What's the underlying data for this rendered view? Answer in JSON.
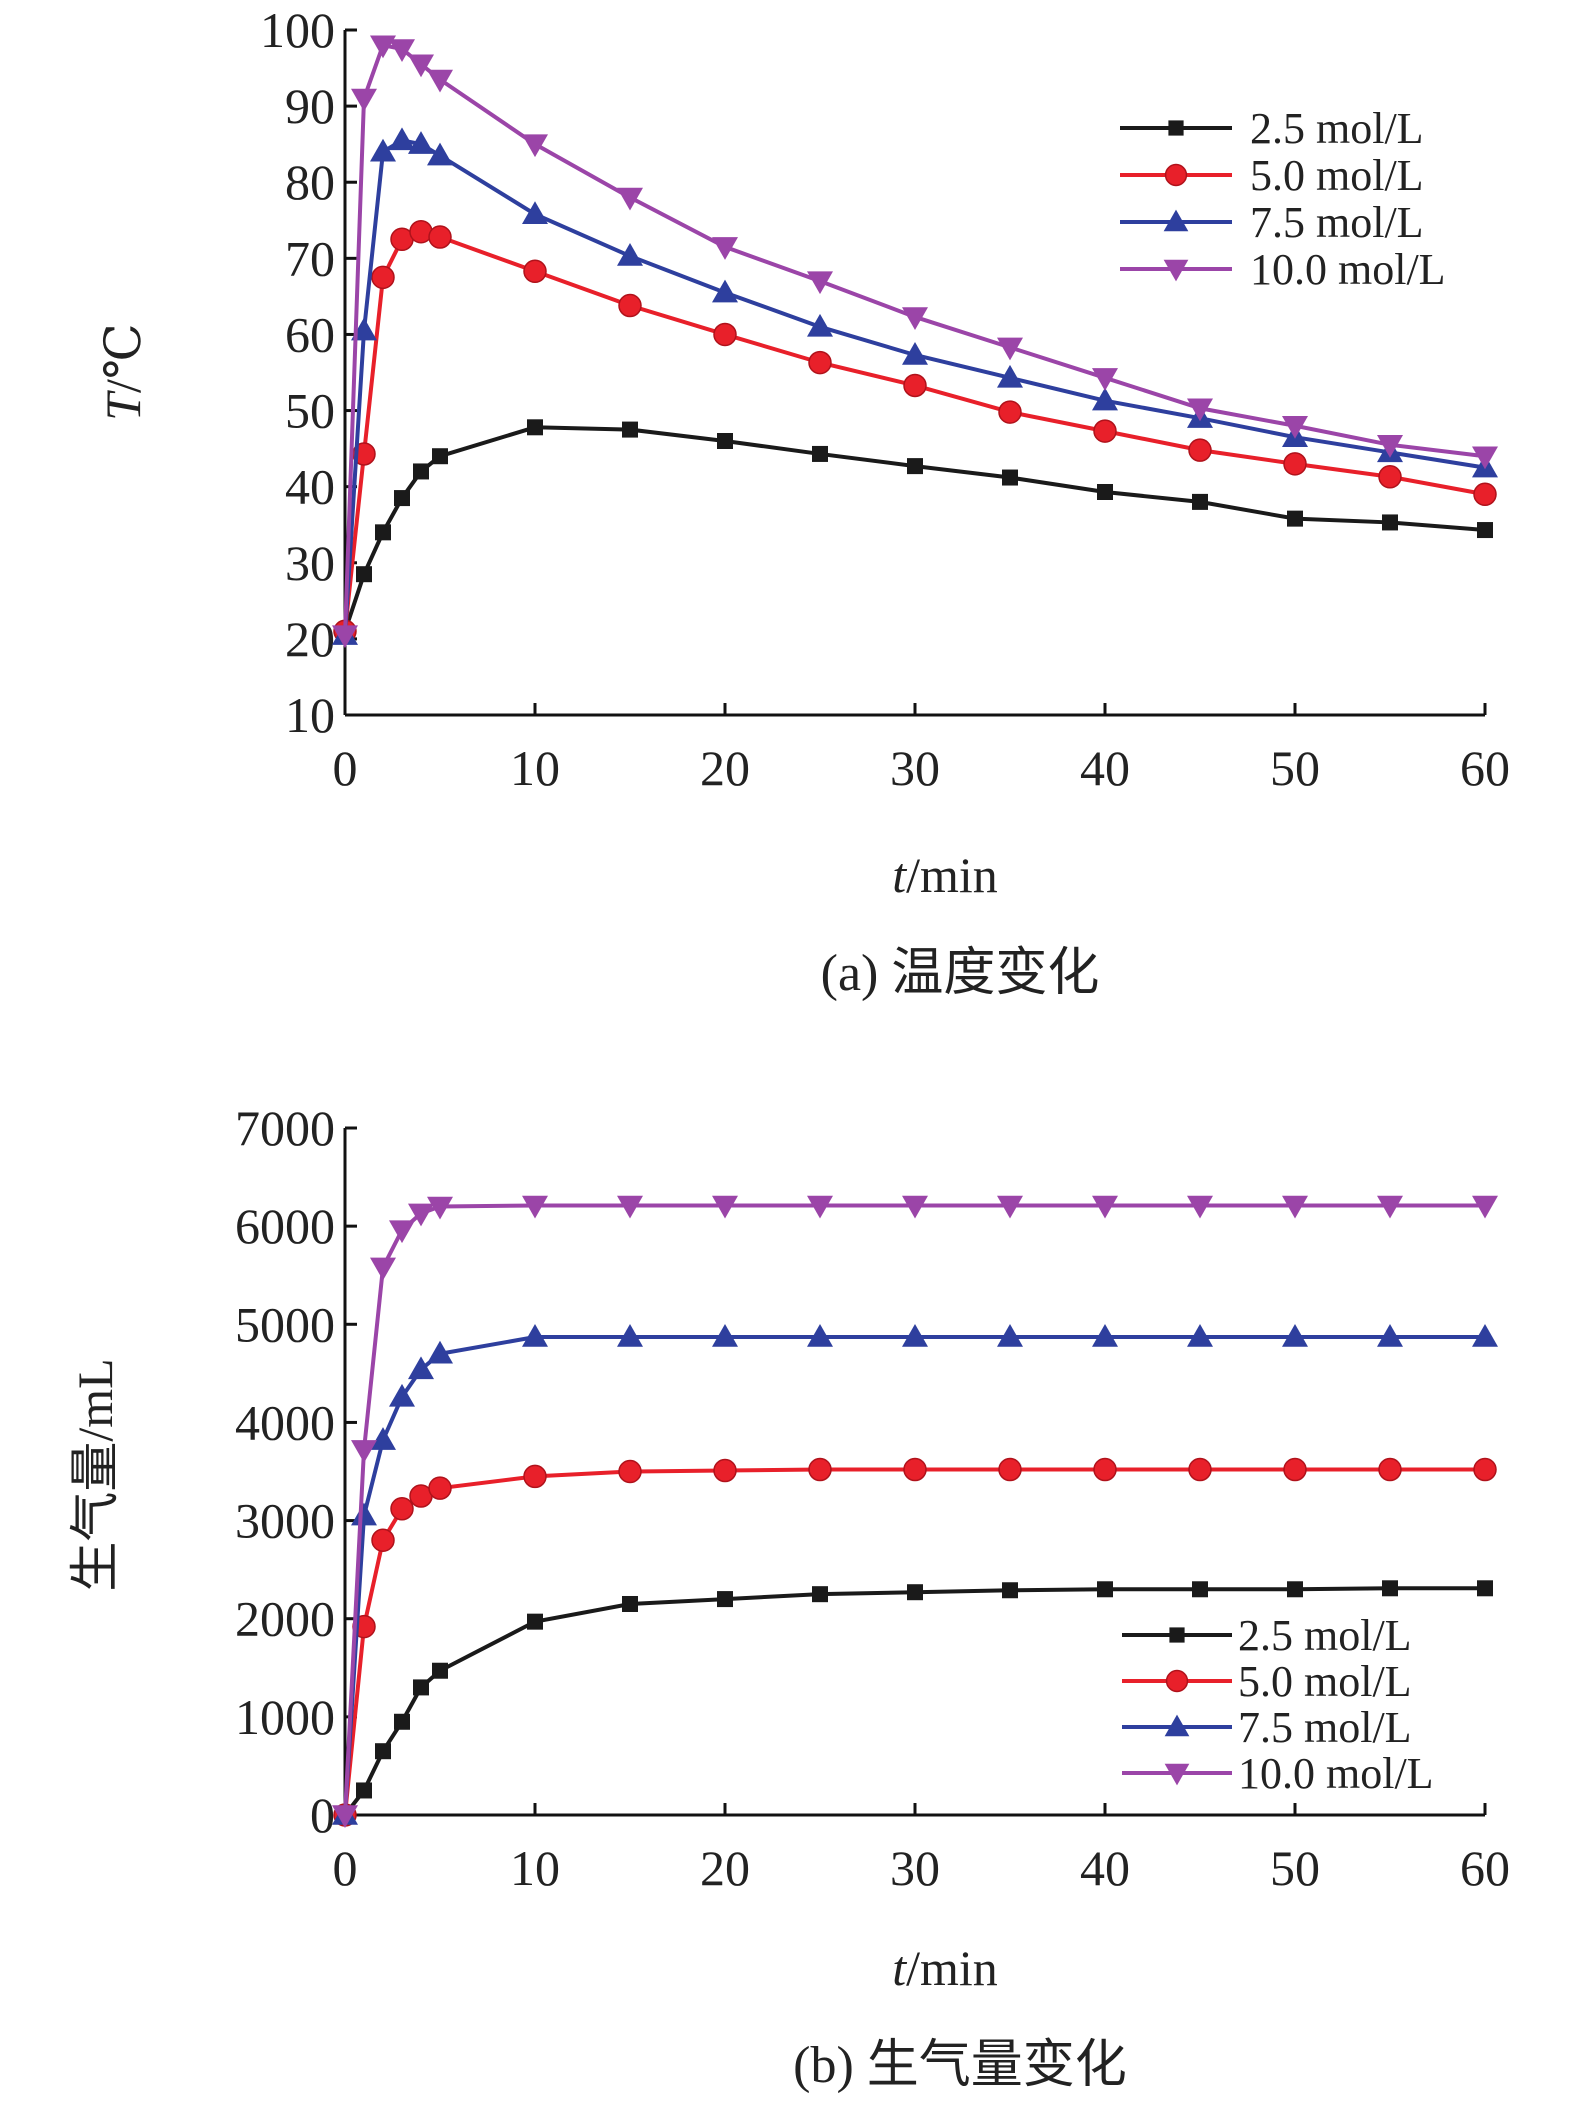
{
  "chart_data": [
    {
      "type": "line",
      "panel_caption": "(a) 温度变化",
      "xlabel_italic": "t",
      "xlabel_rest": "/min",
      "ylabel_italic": "T",
      "ylabel_rest": "/℃",
      "xlim": [
        0,
        60
      ],
      "ylim": [
        10,
        100
      ],
      "xticks": [
        0,
        10,
        20,
        30,
        40,
        50,
        60
      ],
      "yticks": [
        10,
        20,
        30,
        40,
        50,
        60,
        70,
        80,
        90,
        100
      ],
      "grid": false,
      "legend_position": "top-right",
      "x": [
        0,
        1,
        2,
        3,
        4,
        5,
        10,
        15,
        20,
        25,
        30,
        35,
        40,
        45,
        50,
        55,
        60
      ],
      "series": [
        {
          "name": "2.5 mol/L",
          "color": "#1a1a1a",
          "marker": "square",
          "values": [
            21,
            28.5,
            34,
            38.5,
            42,
            44,
            47.8,
            47.5,
            46,
            44.3,
            42.7,
            41.2,
            39.3,
            38,
            35.8,
            35.3,
            34.3
          ]
        },
        {
          "name": "5.0 mol/L",
          "color": "#e8202a",
          "marker": "circle",
          "values": [
            21,
            44.3,
            67.5,
            72.5,
            73.5,
            72.8,
            68.3,
            63.8,
            60,
            56.3,
            53.3,
            49.8,
            47.3,
            44.8,
            43,
            41.3,
            39
          ]
        },
        {
          "name": "7.5 mol/L",
          "color": "#2e3f9e",
          "marker": "triangle-up",
          "values": [
            20.5,
            60.5,
            84,
            85.5,
            85,
            83.5,
            75.8,
            70.3,
            65.5,
            61,
            57.3,
            54.3,
            51.3,
            49,
            46.5,
            44.5,
            42.5
          ]
        },
        {
          "name": "10.0 mol/L",
          "color": "#9b45a8",
          "marker": "triangle-down",
          "values": [
            20.5,
            91,
            98,
            97.5,
            95.5,
            93.5,
            85,
            78,
            71.5,
            67,
            62.3,
            58.3,
            54.3,
            50.3,
            48,
            45.5,
            44
          ]
        }
      ]
    },
    {
      "type": "line",
      "panel_caption": "(b) 生气量变化",
      "xlabel_italic": "t",
      "xlabel_rest": "/min",
      "ylabel": "生气量/mL",
      "xlim": [
        0,
        60
      ],
      "ylim": [
        0,
        7000
      ],
      "xticks": [
        0,
        10,
        20,
        30,
        40,
        50,
        60
      ],
      "yticks": [
        0,
        1000,
        2000,
        3000,
        4000,
        5000,
        6000,
        7000
      ],
      "grid": false,
      "legend_position": "bottom-right",
      "x": [
        0,
        1,
        2,
        3,
        4,
        5,
        10,
        15,
        20,
        25,
        30,
        35,
        40,
        45,
        50,
        55,
        60
      ],
      "series": [
        {
          "name": "2.5 mol/L",
          "color": "#1a1a1a",
          "marker": "square",
          "values": [
            0,
            250,
            650,
            950,
            1300,
            1470,
            1970,
            2150,
            2200,
            2250,
            2270,
            2290,
            2300,
            2300,
            2300,
            2310,
            2310
          ]
        },
        {
          "name": "5.0 mol/L",
          "color": "#e8202a",
          "marker": "circle",
          "values": [
            0,
            1920,
            2800,
            3120,
            3250,
            3330,
            3450,
            3500,
            3510,
            3520,
            3520,
            3520,
            3520,
            3520,
            3520,
            3520,
            3520
          ]
        },
        {
          "name": "7.5 mol/L",
          "color": "#2e3f9e",
          "marker": "triangle-up",
          "values": [
            0,
            3050,
            3820,
            4260,
            4540,
            4700,
            4870,
            4870,
            4870,
            4870,
            4870,
            4870,
            4870,
            4870,
            4870,
            4870,
            4870
          ]
        },
        {
          "name": "10.0 mol/L",
          "color": "#9b45a8",
          "marker": "triangle-down",
          "values": [
            0,
            3720,
            5580,
            5960,
            6130,
            6200,
            6210,
            6210,
            6210,
            6210,
            6210,
            6210,
            6210,
            6210,
            6210,
            6210,
            6210
          ]
        }
      ]
    }
  ]
}
